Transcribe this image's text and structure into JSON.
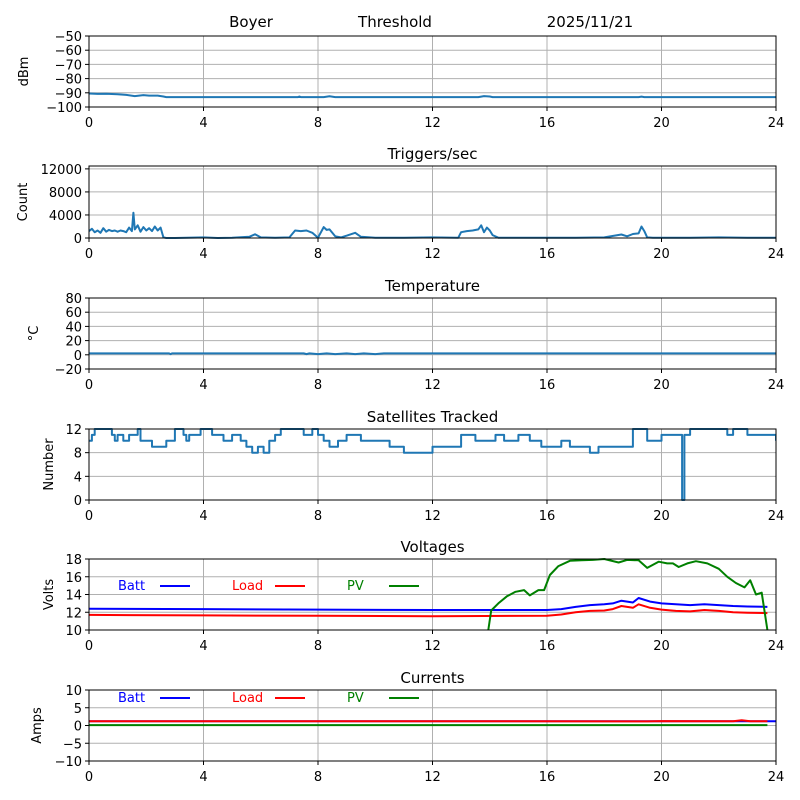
{
  "header": {
    "station": "Boyer",
    "mode": "Threshold",
    "date": "2025/11/21"
  },
  "chart_data": [
    {
      "type": "line",
      "title": "",
      "ylabel": "dBm",
      "xlabel": "",
      "xlim": [
        0,
        24
      ],
      "ylim": [
        -100,
        -50
      ],
      "xticks": [
        0,
        4,
        8,
        12,
        16,
        20,
        24
      ],
      "yticks": [
        -100,
        -90,
        -80,
        -70,
        -60,
        -50
      ],
      "ytick_labels": [
        "−100",
        "−90",
        "−80",
        "−70",
        "−60",
        "−50"
      ],
      "grid": true,
      "series": [
        {
          "name": "Threshold",
          "color": "#1f77b4",
          "x": [
            0,
            0.3,
            0.6,
            1.0,
            1.3,
            1.6,
            1.9,
            2.1,
            2.4,
            2.6,
            2.7,
            7.3,
            7.35,
            7.4,
            8.2,
            8.4,
            8.6,
            13.6,
            13.8,
            14.0,
            14.1,
            19.2,
            19.3,
            19.4,
            24
          ],
          "y": [
            -90.5,
            -90.8,
            -90.6,
            -91.0,
            -91.5,
            -92.3,
            -91.6,
            -92.0,
            -92.0,
            -92.6,
            -93.0,
            -93.0,
            -92.6,
            -93.0,
            -93.0,
            -92.5,
            -93.0,
            -93.0,
            -92.3,
            -92.6,
            -93.0,
            -93.0,
            -92.7,
            -93.0,
            -93.0
          ]
        }
      ]
    },
    {
      "type": "line",
      "title": "Triggers/sec",
      "ylabel": "Count",
      "xlabel": "",
      "xlim": [
        0,
        24
      ],
      "ylim": [
        0,
        12500
      ],
      "xticks": [
        0,
        4,
        8,
        12,
        16,
        20,
        24
      ],
      "yticks": [
        0,
        4000,
        8000,
        12000
      ],
      "ytick_labels": [
        "0",
        "4000",
        "8000",
        "12000"
      ],
      "grid": true,
      "series": [
        {
          "name": "Triggers",
          "color": "#1f77b4",
          "x": [
            0,
            0.1,
            0.2,
            0.3,
            0.4,
            0.5,
            0.6,
            0.7,
            0.8,
            0.9,
            1.0,
            1.1,
            1.2,
            1.3,
            1.4,
            1.5,
            1.55,
            1.6,
            1.7,
            1.8,
            1.9,
            2.0,
            2.1,
            2.2,
            2.3,
            2.4,
            2.5,
            2.6,
            2.7,
            3.0,
            4.0,
            4.5,
            5.0,
            5.6,
            5.8,
            6.0,
            6.5,
            7.0,
            7.2,
            7.4,
            7.6,
            7.8,
            8.0,
            8.2,
            8.3,
            8.4,
            8.6,
            8.8,
            9.0,
            9.3,
            9.5,
            10.0,
            11.0,
            12.0,
            12.9,
            13.0,
            13.2,
            13.4,
            13.6,
            13.7,
            13.8,
            13.9,
            14.0,
            14.1,
            14.3,
            15.0,
            16.0,
            17.0,
            18.0,
            18.6,
            18.8,
            19.0,
            19.2,
            19.3,
            19.4,
            19.5,
            19.7,
            20.0,
            21.0,
            22.0,
            23.0,
            24.0
          ],
          "y": [
            1200,
            1600,
            1000,
            1300,
            900,
            1700,
            1100,
            1400,
            1200,
            1300,
            1100,
            1300,
            1200,
            1000,
            1800,
            1200,
            4400,
            1500,
            2200,
            1100,
            1900,
            1300,
            1700,
            1200,
            2000,
            1300,
            1800,
            100,
            0,
            0,
            100,
            0,
            50,
            200,
            650,
            100,
            50,
            100,
            1300,
            1200,
            1300,
            900,
            50,
            1900,
            1400,
            1500,
            300,
            100,
            400,
            900,
            200,
            50,
            50,
            100,
            50,
            1000,
            1200,
            1300,
            1500,
            2200,
            1000,
            1800,
            1300,
            500,
            50,
            50,
            50,
            50,
            100,
            600,
            300,
            700,
            800,
            2000,
            1200,
            100,
            50,
            50,
            50,
            100,
            50,
            50
          ]
        }
      ]
    },
    {
      "type": "line",
      "title": "Temperature",
      "ylabel": "°C",
      "xlabel": "",
      "xlim": [
        0,
        24
      ],
      "ylim": [
        -20,
        80
      ],
      "xticks": [
        0,
        4,
        8,
        12,
        16,
        20,
        24
      ],
      "yticks": [
        -20,
        0,
        20,
        40,
        60,
        80
      ],
      "ytick_labels": [
        "−20",
        "0",
        "20",
        "40",
        "60",
        "80"
      ],
      "grid": true,
      "series": [
        {
          "name": "Temperature",
          "color": "#1f77b4",
          "x": [
            0,
            2.8,
            2.85,
            2.9,
            7.5,
            7.6,
            7.7,
            8.0,
            8.3,
            8.6,
            9.0,
            9.3,
            9.6,
            10.0,
            10.3,
            10.6,
            24
          ],
          "y": [
            2,
            2,
            1,
            2,
            2,
            1,
            2,
            1,
            2,
            1,
            2,
            1,
            2,
            1,
            2,
            2,
            2
          ]
        }
      ]
    },
    {
      "type": "line",
      "title": "Satellites Tracked",
      "ylabel": "Number",
      "xlabel": "",
      "xlim": [
        0,
        24
      ],
      "ylim": [
        0,
        12
      ],
      "xticks": [
        0,
        4,
        8,
        12,
        16,
        20,
        24
      ],
      "yticks": [
        0,
        4,
        8,
        12
      ],
      "ytick_labels": [
        "0",
        "4",
        "8",
        "12"
      ],
      "grid": true,
      "series": [
        {
          "name": "Satellites",
          "color": "#1f77b4",
          "step": true,
          "x": [
            0,
            0.1,
            0.2,
            0.6,
            0.8,
            0.9,
            1.0,
            1.2,
            1.4,
            1.7,
            1.8,
            2.2,
            2.7,
            3.0,
            3.3,
            3.4,
            3.5,
            3.9,
            4.3,
            4.7,
            5.0,
            5.3,
            5.5,
            5.7,
            5.8,
            5.9,
            6.1,
            6.3,
            6.5,
            6.7,
            7.0,
            7.5,
            7.8,
            8.0,
            8.2,
            8.4,
            8.7,
            9.0,
            9.5,
            10.0,
            10.5,
            11.0,
            11.5,
            12.0,
            12.8,
            13.0,
            13.2,
            13.5,
            14.0,
            14.2,
            14.5,
            15.0,
            15.4,
            15.8,
            16.0,
            16.5,
            16.8,
            17.2,
            17.5,
            17.8,
            18.5,
            19.0,
            19.2,
            19.5,
            20.0,
            20.4,
            20.65,
            20.72,
            20.8,
            21.0,
            21.2,
            21.6,
            22.0,
            22.3,
            22.5,
            23.0,
            24.0
          ],
          "y": [
            10,
            11,
            12,
            12,
            11,
            10,
            11,
            10,
            11,
            12,
            10,
            9,
            10,
            12,
            11,
            10,
            11,
            12,
            11,
            10,
            11,
            10,
            9,
            8,
            8,
            9,
            8,
            10,
            11,
            12,
            12,
            11,
            12,
            11,
            10,
            9,
            10,
            11,
            10,
            10,
            9,
            8,
            8,
            9,
            9,
            11,
            11,
            10,
            10,
            11,
            10,
            11,
            10,
            9,
            9,
            10,
            9,
            9,
            8,
            9,
            9,
            12,
            12,
            10,
            11,
            11,
            11,
            0,
            11,
            12,
            12,
            12,
            12,
            11,
            12,
            11,
            10
          ]
        }
      ]
    },
    {
      "type": "line",
      "title": "Voltages",
      "ylabel": "Volts",
      "xlabel": "",
      "xlim": [
        0,
        24
      ],
      "ylim": [
        10,
        18
      ],
      "xticks": [
        0,
        4,
        8,
        12,
        16,
        20,
        24
      ],
      "yticks": [
        10,
        12,
        14,
        16,
        18
      ],
      "ytick_labels": [
        "10",
        "12",
        "14",
        "16",
        "18"
      ],
      "grid": true,
      "legend": "top-left (inline)",
      "series": [
        {
          "name": "Batt",
          "color": "#0000ff",
          "x": [
            0,
            4,
            8,
            12,
            16,
            16.5,
            17,
            17.5,
            18,
            18.3,
            18.6,
            19.0,
            19.2,
            19.6,
            20.0,
            20.5,
            21.0,
            21.5,
            22.0,
            22.5,
            23.0,
            23.7
          ],
          "y": [
            12.4,
            12.35,
            12.3,
            12.25,
            12.25,
            12.35,
            12.6,
            12.8,
            12.9,
            13.0,
            13.3,
            13.1,
            13.6,
            13.2,
            13.0,
            12.9,
            12.8,
            12.9,
            12.8,
            12.7,
            12.65,
            12.6
          ]
        },
        {
          "name": "Load",
          "color": "#ff0000",
          "x": [
            0,
            4,
            8,
            12,
            16,
            16.5,
            17,
            17.5,
            18,
            18.3,
            18.6,
            19.0,
            19.2,
            19.6,
            20.0,
            20.5,
            21.0,
            21.5,
            22.0,
            22.5,
            23.0,
            23.7
          ],
          "y": [
            11.7,
            11.65,
            11.6,
            11.55,
            11.6,
            11.75,
            12.0,
            12.15,
            12.2,
            12.35,
            12.7,
            12.5,
            12.9,
            12.5,
            12.3,
            12.15,
            12.1,
            12.25,
            12.15,
            12.0,
            11.95,
            11.9
          ]
        },
        {
          "name": "PV",
          "color": "#008000",
          "x": [
            13.95,
            14.05,
            14.3,
            14.6,
            14.9,
            15.2,
            15.4,
            15.7,
            15.9,
            16.1,
            16.4,
            16.8,
            17.2,
            17.6,
            18.0,
            18.5,
            18.8,
            19.2,
            19.5,
            19.9,
            20.2,
            20.4,
            20.6,
            20.9,
            21.2,
            21.6,
            22.0,
            22.3,
            22.6,
            22.9,
            23.1,
            23.3,
            23.5,
            23.7
          ],
          "y": [
            10,
            12.2,
            13.0,
            13.8,
            14.3,
            14.5,
            13.9,
            14.5,
            14.5,
            16.2,
            17.2,
            17.8,
            17.85,
            17.9,
            18.0,
            17.6,
            17.9,
            17.85,
            17.0,
            17.7,
            17.5,
            17.5,
            17.1,
            17.5,
            17.75,
            17.5,
            16.9,
            16.0,
            15.3,
            14.8,
            15.6,
            14.0,
            14.2,
            10
          ]
        }
      ]
    },
    {
      "type": "line",
      "title": "Currents",
      "ylabel": "Amps",
      "xlabel": "",
      "xlim": [
        0,
        24
      ],
      "ylim": [
        -10,
        10
      ],
      "xticks": [
        0,
        4,
        8,
        12,
        16,
        20,
        24
      ],
      "yticks": [
        -10,
        -5,
        0,
        5,
        10
      ],
      "ytick_labels": [
        "−10",
        "−5",
        "0",
        "5",
        "10"
      ],
      "grid": true,
      "legend": "top-left (inline)",
      "series": [
        {
          "name": "Batt",
          "color": "#0000ff",
          "x": [
            0,
            24
          ],
          "y": [
            1.2,
            1.2
          ]
        },
        {
          "name": "Load",
          "color": "#ff0000",
          "x": [
            0,
            12,
            19.5,
            20,
            22.5,
            22.8,
            23.1,
            23.7
          ],
          "y": [
            1.2,
            1.2,
            1.15,
            1.25,
            1.2,
            1.5,
            1.2,
            1.2
          ]
        },
        {
          "name": "PV",
          "color": "#008000",
          "x": [
            0,
            23.7
          ],
          "y": [
            0.1,
            0.1
          ]
        }
      ]
    }
  ]
}
